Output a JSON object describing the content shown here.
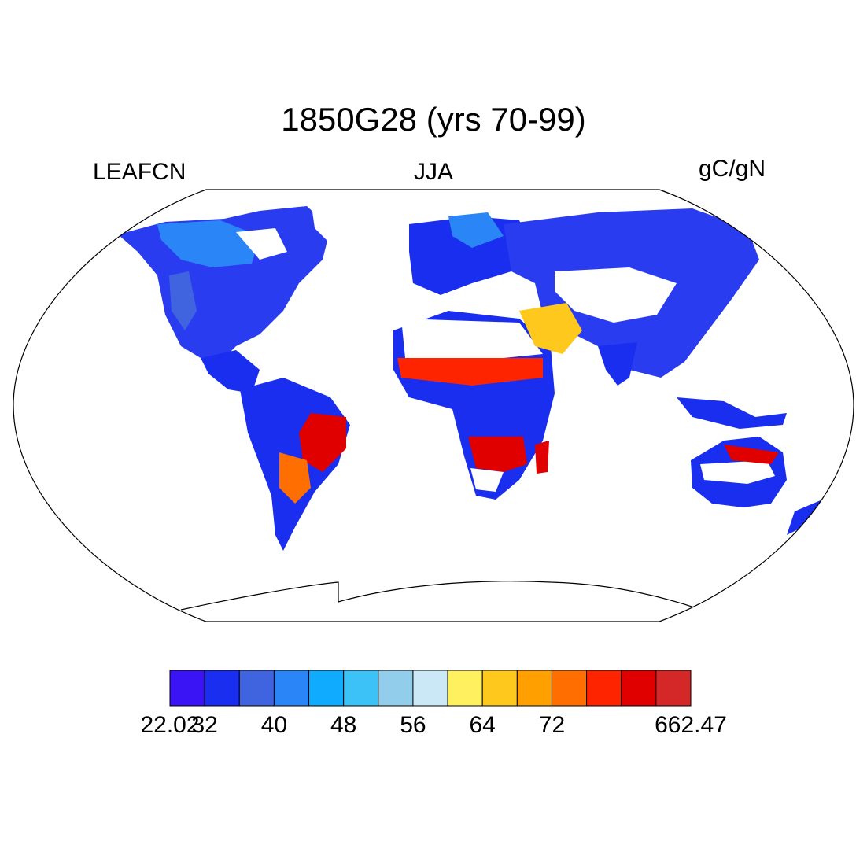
{
  "title": "1850G28 (yrs 70-99)",
  "left_label": "LEAFCN",
  "center_label": "JJA",
  "right_label": "gC/gN",
  "map": {
    "projection": "Robinson",
    "content": "global land field of leaf C:N ratio",
    "ocean_color": "#ffffff",
    "missing_color": "#ffffff",
    "coastline_color": "#000000"
  },
  "colorbar": {
    "colors": [
      "#3b14f5",
      "#1a2ef0",
      "#4064e0",
      "#2a86f7",
      "#10aaff",
      "#3cc2f7",
      "#92cdec",
      "#cbe8f7",
      "#fff060",
      "#ffc81c",
      "#ffa000",
      "#ff6e00",
      "#ff2400",
      "#e00000",
      "#d42828"
    ],
    "tick_labels": [
      "22.02",
      "32",
      "40",
      "48",
      "56",
      "64",
      "72",
      "662.47"
    ]
  }
}
